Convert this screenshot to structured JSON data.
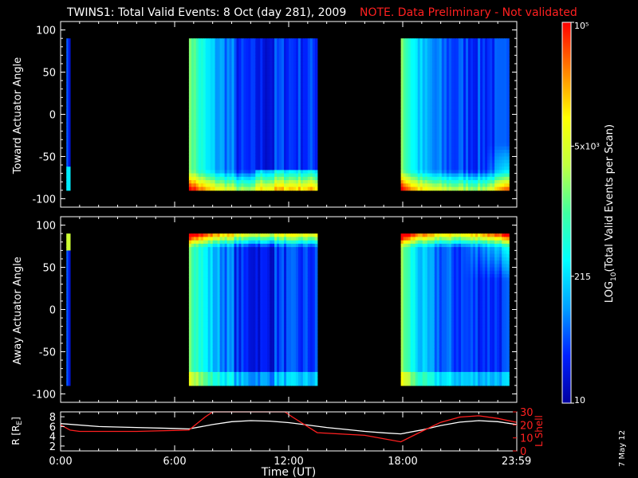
{
  "header": {
    "title": "TWINS1: Total Valid Events:  8 Oct (day 281), 2009",
    "note": "NOTE. Data Preliminary - Not validated"
  },
  "footer": {
    "date_stamp": "7 May 12"
  },
  "colorbar": {
    "label": "LOG10(Total Valid Events per Scan)",
    "label_main": "LOG",
    "label_sub": "10",
    "label_rest": "(Total Valid Events per Scan)",
    "ticks": [
      {
        "label": "10",
        "value": 10
      },
      {
        "label": "215",
        "value": 215
      },
      {
        "label": "5x10³",
        "value": 5000
      },
      {
        "label": "10⁵",
        "value": 100000
      }
    ],
    "range": [
      10,
      100000
    ],
    "scale": "log",
    "colors": [
      "#0000a0",
      "#0020ff",
      "#00a0ff",
      "#00ffff",
      "#40ffa0",
      "#c0ff40",
      "#ffff00",
      "#ff8000",
      "#ff0000"
    ]
  },
  "chart_data": [
    {
      "type": "heatmap",
      "panel": "toward",
      "ylabel": "Toward Actuator Angle",
      "ylim": [
        -110,
        110
      ],
      "yticks": [
        -100,
        -50,
        0,
        50,
        100
      ],
      "xlim": [
        0,
        24
      ],
      "data_intervals_hours": [
        [
          0.3,
          0.5
        ],
        [
          6.75,
          13.5
        ],
        [
          17.9,
          23.59
        ]
      ],
      "angle_range": [
        -90,
        90
      ],
      "high_count_region": "low angles near -90 after 10:00 and 23:00"
    },
    {
      "type": "heatmap",
      "panel": "away",
      "ylabel": "Away Actuator Angle",
      "ylim": [
        -110,
        110
      ],
      "yticks": [
        -100,
        -50,
        0,
        50,
        100
      ],
      "xlim": [
        0,
        24
      ],
      "data_intervals_hours": [
        [
          0.3,
          0.5
        ],
        [
          6.75,
          13.5
        ],
        [
          17.9,
          23.59
        ]
      ],
      "angle_range": [
        -90,
        90
      ],
      "high_count_region": "high angles near +90"
    },
    {
      "type": "line",
      "panel": "orbit",
      "ylabel": "R [RE]",
      "ylabel_main": "R [R",
      "ylabel_sub": "E",
      "ylabel_end": "]",
      "ylabel_right": "L Shell",
      "xlabel": "Time (UT)",
      "xtick_labels": [
        "0:00",
        "6:00",
        "12:00",
        "18:00",
        "23:59"
      ],
      "xticks_hours": [
        0,
        6,
        12,
        18,
        23.983
      ],
      "ylim": [
        1,
        9
      ],
      "yticks": [
        2,
        4,
        6,
        8
      ],
      "ylim_right": [
        0,
        30
      ],
      "yticks_right": [
        0,
        10,
        20,
        30
      ],
      "series": [
        {
          "axis": "left",
          "color": "#ffffff",
          "x": [
            0,
            2,
            4,
            6,
            6.75,
            8,
            9,
            10,
            11,
            12,
            13,
            14,
            15,
            16,
            17,
            17.9,
            19,
            20,
            21,
            22,
            23,
            23.99
          ],
          "y": [
            6.6,
            6.0,
            5.8,
            5.6,
            5.5,
            6.4,
            7.0,
            7.2,
            7.1,
            6.8,
            6.3,
            5.8,
            5.4,
            5.0,
            4.7,
            4.5,
            5.3,
            6.2,
            6.9,
            7.2,
            7.0,
            6.4
          ]
        },
        {
          "axis": "right",
          "color": "#ff2020",
          "x": [
            0,
            0.5,
            1,
            4,
            6.75,
            7.6,
            8.0,
            11.8,
            12.2,
            13.5,
            16,
            17.9,
            19,
            20,
            21,
            22,
            23,
            23.99
          ],
          "y": [
            20,
            16,
            15,
            15,
            16,
            26,
            32,
            32,
            26,
            14,
            12,
            7,
            15,
            22,
            26,
            27,
            25,
            22
          ]
        }
      ]
    }
  ]
}
